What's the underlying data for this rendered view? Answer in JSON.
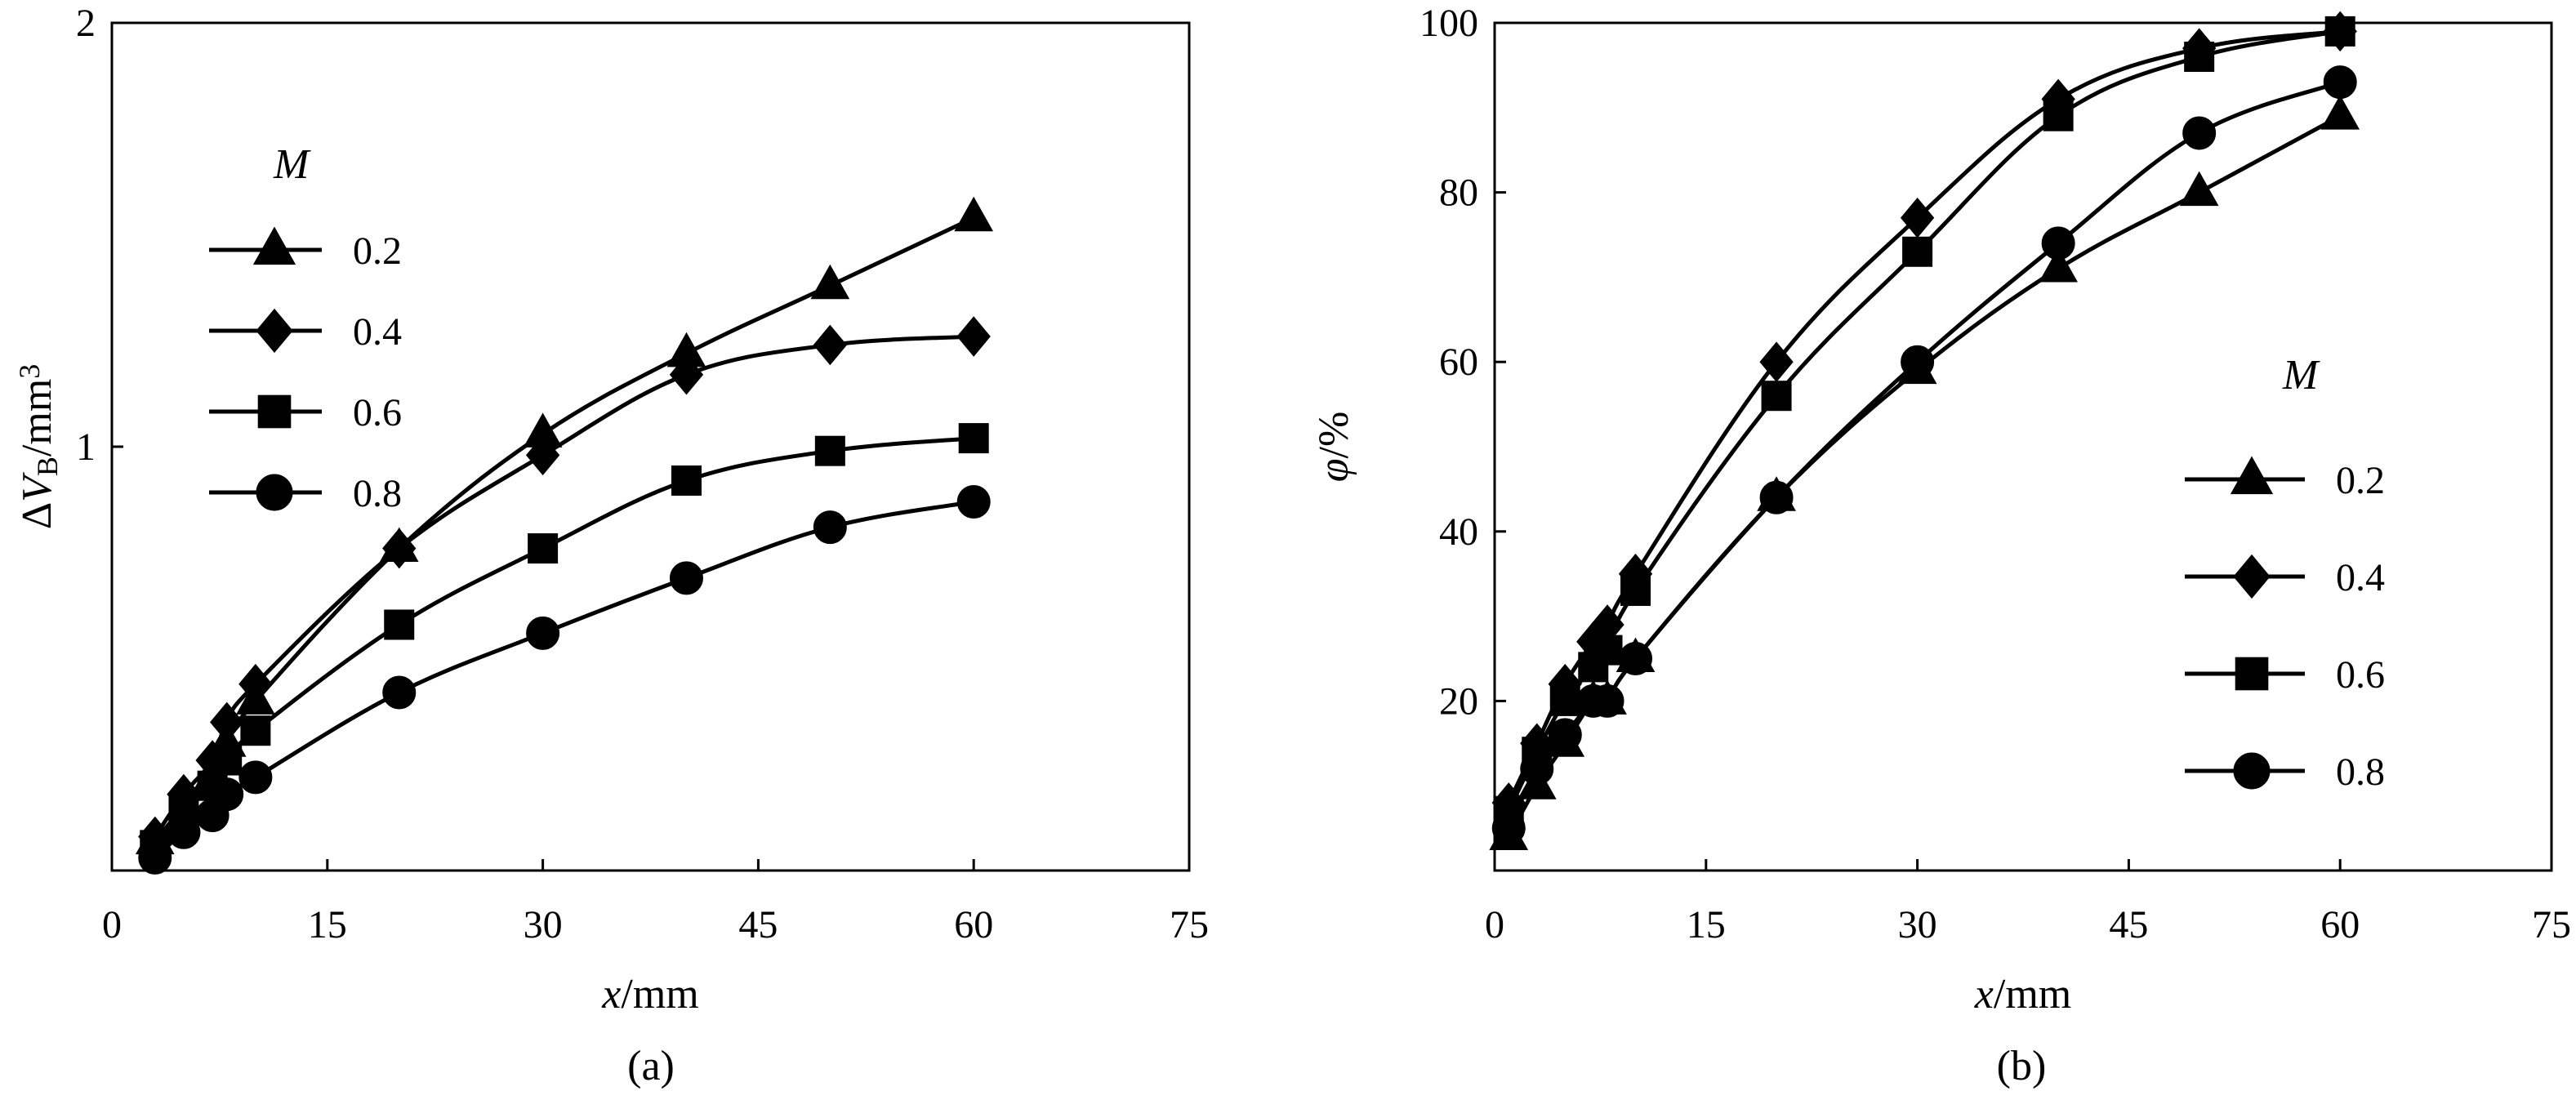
{
  "chart_data": [
    {
      "id": "a",
      "type": "line",
      "caption": "(a)",
      "xlabel": {
        "italic": "x",
        "rest": "/mm"
      },
      "ylabel": {
        "prefix": "Δ",
        "italic": "V",
        "sub": "B",
        "rest": "/mm",
        "sup": "3"
      },
      "xlim": [
        0,
        75
      ],
      "ylim": [
        0,
        2
      ],
      "xticks": [
        0,
        15,
        30,
        45,
        60,
        75
      ],
      "yticks": [
        1,
        2
      ],
      "legend": {
        "title": "M",
        "placement": "top-left"
      },
      "series": [
        {
          "name": "0.2",
          "marker": "triangle",
          "x": [
            3,
            5,
            7,
            8,
            10,
            20,
            30,
            40,
            50,
            60
          ],
          "y": [
            0.07,
            0.15,
            0.22,
            0.3,
            0.4,
            0.76,
            1.03,
            1.22,
            1.38,
            1.54
          ]
        },
        {
          "name": "0.4",
          "marker": "diamond",
          "x": [
            3,
            5,
            7,
            8,
            10,
            20,
            30,
            40,
            50,
            60
          ],
          "y": [
            0.08,
            0.18,
            0.26,
            0.35,
            0.44,
            0.76,
            0.98,
            1.17,
            1.24,
            1.26
          ]
        },
        {
          "name": "0.6",
          "marker": "square",
          "x": [
            3,
            5,
            7,
            8,
            10,
            20,
            30,
            40,
            50,
            60
          ],
          "y": [
            0.06,
            0.14,
            0.2,
            0.26,
            0.33,
            0.58,
            0.76,
            0.92,
            0.99,
            1.02
          ]
        },
        {
          "name": "0.8",
          "marker": "circle",
          "x": [
            3,
            5,
            7,
            8,
            10,
            20,
            30,
            40,
            50,
            60
          ],
          "y": [
            0.03,
            0.09,
            0.13,
            0.18,
            0.22,
            0.42,
            0.56,
            0.69,
            0.81,
            0.87
          ]
        }
      ]
    },
    {
      "id": "b",
      "type": "line",
      "caption": "(b)",
      "xlabel": {
        "italic": "x",
        "rest": "/mm"
      },
      "ylabel": {
        "prefix": "",
        "italic": "φ",
        "sub": "",
        "rest": "/%",
        "sup": ""
      },
      "xlim": [
        0,
        75
      ],
      "ylim": [
        0,
        100
      ],
      "xticks": [
        0,
        15,
        30,
        45,
        60,
        75
      ],
      "yticks": [
        20,
        40,
        60,
        80,
        100
      ],
      "legend": {
        "title": "M",
        "placement": "right"
      },
      "series": [
        {
          "name": "0.2",
          "marker": "triangle",
          "x": [
            1,
            3,
            5,
            7,
            8,
            10,
            20,
            30,
            40,
            50,
            60
          ],
          "y": [
            4,
            10,
            15,
            20,
            20,
            25,
            44,
            59,
            71,
            80,
            89
          ]
        },
        {
          "name": "0.4",
          "marker": "diamond",
          "x": [
            1,
            3,
            5,
            7,
            8,
            10,
            20,
            30,
            40,
            50,
            60
          ],
          "y": [
            8,
            15,
            22,
            27,
            29,
            35,
            60,
            77,
            91,
            97,
            99
          ]
        },
        {
          "name": "0.6",
          "marker": "square",
          "x": [
            1,
            3,
            5,
            7,
            8,
            10,
            20,
            30,
            40,
            50,
            60
          ],
          "y": [
            7,
            14,
            20,
            24,
            26,
            33,
            56,
            73,
            89,
            96,
            99
          ]
        },
        {
          "name": "0.8",
          "marker": "circle",
          "x": [
            1,
            3,
            5,
            7,
            8,
            10,
            20,
            30,
            40,
            50,
            60
          ],
          "y": [
            5,
            12,
            16,
            20,
            20,
            25,
            44,
            60,
            74,
            87,
            93
          ]
        }
      ]
    }
  ]
}
